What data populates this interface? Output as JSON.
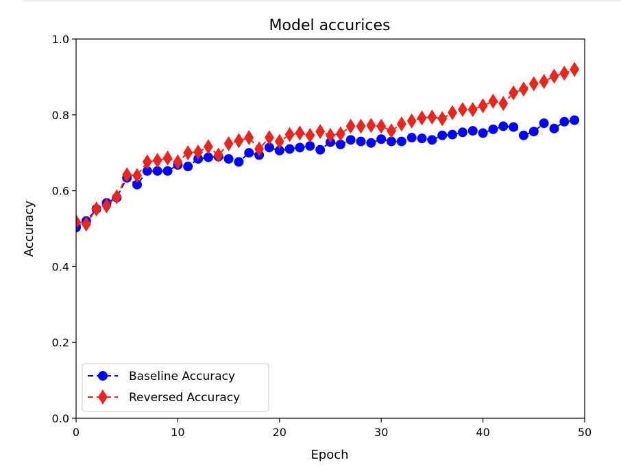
{
  "chart_data": {
    "type": "line",
    "title": "Model accurices",
    "xlabel": "Epoch",
    "ylabel": "Accuracy",
    "xlim": [
      0,
      50
    ],
    "ylim": [
      0.0,
      1.0
    ],
    "xticks": [
      "0",
      "10",
      "20",
      "30",
      "40",
      "50"
    ],
    "yticks": [
      "0.0",
      "0.2",
      "0.4",
      "0.6",
      "0.8",
      "1.0"
    ],
    "grid": false,
    "legend_position": "lower-left",
    "x": [
      0,
      1,
      2,
      3,
      4,
      5,
      6,
      7,
      8,
      9,
      10,
      11,
      12,
      13,
      14,
      15,
      16,
      17,
      18,
      19,
      20,
      21,
      22,
      23,
      24,
      25,
      26,
      27,
      28,
      29,
      30,
      31,
      32,
      33,
      34,
      35,
      36,
      37,
      38,
      39,
      40,
      41,
      42,
      43,
      44,
      45,
      46,
      47,
      48,
      49
    ],
    "series": [
      {
        "name": "Baseline Accuracy",
        "color": "#0000ff",
        "marker": "circle",
        "linestyle": "dashed",
        "values": [
          0.503,
          0.52,
          0.552,
          0.568,
          0.582,
          0.634,
          0.616,
          0.652,
          0.652,
          0.652,
          0.668,
          0.664,
          0.684,
          0.688,
          0.69,
          0.684,
          0.676,
          0.7,
          0.694,
          0.714,
          0.706,
          0.71,
          0.714,
          0.718,
          0.708,
          0.728,
          0.722,
          0.734,
          0.73,
          0.726,
          0.736,
          0.73,
          0.73,
          0.74,
          0.738,
          0.734,
          0.746,
          0.748,
          0.754,
          0.758,
          0.752,
          0.762,
          0.77,
          0.768,
          0.746,
          0.756,
          0.778,
          0.764,
          0.782,
          0.786
        ]
      },
      {
        "name": "Reversed Accuracy",
        "color": "#e8261d",
        "marker": "diamond",
        "linestyle": "dashed",
        "values": [
          0.518,
          0.512,
          0.552,
          0.56,
          0.584,
          0.642,
          0.64,
          0.676,
          0.68,
          0.686,
          0.676,
          0.7,
          0.702,
          0.716,
          0.694,
          0.724,
          0.732,
          0.74,
          0.71,
          0.74,
          0.73,
          0.748,
          0.752,
          0.746,
          0.756,
          0.746,
          0.75,
          0.77,
          0.77,
          0.772,
          0.77,
          0.758,
          0.776,
          0.784,
          0.792,
          0.794,
          0.79,
          0.806,
          0.814,
          0.814,
          0.824,
          0.836,
          0.83,
          0.858,
          0.868,
          0.882,
          0.888,
          0.902,
          0.91,
          0.92
        ]
      }
    ]
  }
}
